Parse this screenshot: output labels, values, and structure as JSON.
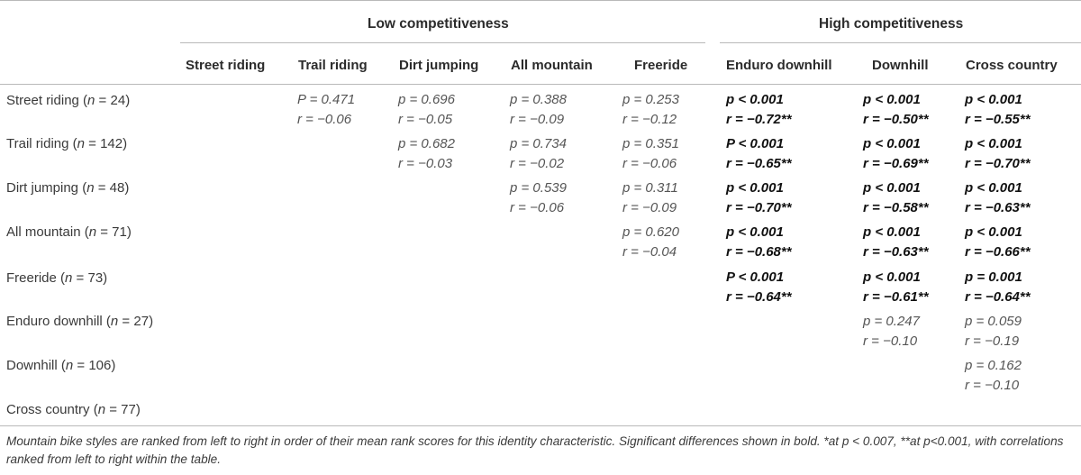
{
  "table": {
    "groups": [
      "Low competitiveness",
      "High competitiveness"
    ],
    "columns": [
      "Street riding",
      "Trail riding",
      "Dirt jumping",
      "All mountain",
      "Freeride",
      "Enduro downhill",
      "Downhill",
      "Cross country"
    ],
    "rows": [
      {
        "label": "Street riding",
        "n_symbol": "n",
        "n": "24",
        "cells": [
          {
            "column": "Trail riding",
            "p": "P = 0.471",
            "r": "r = −0.06",
            "significant": false
          },
          {
            "column": "Dirt jumping",
            "p": "p = 0.696",
            "r": "r = −0.05",
            "significant": false
          },
          {
            "column": "All mountain",
            "p": "p = 0.388",
            "r": "r = −0.09",
            "significant": false
          },
          {
            "column": "Freeride",
            "p": "p = 0.253",
            "r": "r = −0.12",
            "significant": false
          },
          {
            "column": "Enduro downhill",
            "p": "p < 0.001",
            "r": "r = −0.72**",
            "significant": true
          },
          {
            "column": "Downhill",
            "p": "p < 0.001",
            "r": "r = −0.50**",
            "significant": true
          },
          {
            "column": "Cross country",
            "p": "p < 0.001",
            "r": "r = −0.55**",
            "significant": true
          }
        ]
      },
      {
        "label": "Trail riding",
        "n_symbol": "n",
        "n": "142",
        "cells": [
          {
            "column": "Dirt jumping",
            "p": "p = 0.682",
            "r": "r = −0.03",
            "significant": false
          },
          {
            "column": "All mountain",
            "p": "p = 0.734",
            "r": "r = −0.02",
            "significant": false
          },
          {
            "column": "Freeride",
            "p": "p = 0.351",
            "r": "r = −0.06",
            "significant": false
          },
          {
            "column": "Enduro downhill",
            "p": "P < 0.001",
            "r": "r = −0.65**",
            "significant": true
          },
          {
            "column": "Downhill",
            "p": "p < 0.001",
            "r": "r = −0.69**",
            "significant": true
          },
          {
            "column": "Cross country",
            "p": "p < 0.001",
            "r": "r = −0.70**",
            "significant": true
          }
        ]
      },
      {
        "label": "Dirt jumping",
        "n_symbol": "n",
        "n": "48",
        "cells": [
          {
            "column": "All mountain",
            "p": "p = 0.539",
            "r": "r = −0.06",
            "significant": false
          },
          {
            "column": "Freeride",
            "p": "p = 0.311",
            "r": "r = −0.09",
            "significant": false
          },
          {
            "column": "Enduro downhill",
            "p": "p < 0.001",
            "r": "r = −0.70**",
            "significant": true
          },
          {
            "column": "Downhill",
            "p": "p < 0.001",
            "r": "r = −0.58**",
            "significant": true
          },
          {
            "column": "Cross country",
            "p": "p < 0.001",
            "r": "r = −0.63**",
            "significant": true
          }
        ]
      },
      {
        "label": "All mountain",
        "n_symbol": "n",
        "n": "71",
        "cells": [
          {
            "column": "Freeride",
            "p": "p = 0.620",
            "r": "r = −0.04",
            "significant": false
          },
          {
            "column": "Enduro downhill",
            "p": "p < 0.001",
            "r": "r = −0.68**",
            "significant": true
          },
          {
            "column": "Downhill",
            "p": "p < 0.001",
            "r": "r = −0.63**",
            "significant": true
          },
          {
            "column": "Cross country",
            "p": "p < 0.001",
            "r": "r = −0.66**",
            "significant": true
          }
        ]
      },
      {
        "label": "Freeride",
        "n_symbol": "n",
        "n": "73",
        "cells": [
          {
            "column": "Enduro downhill",
            "p": "P < 0.001",
            "r": "r = −0.64**",
            "significant": true
          },
          {
            "column": "Downhill",
            "p": "p < 0.001",
            "r": "r = −0.61**",
            "significant": true
          },
          {
            "column": "Cross country",
            "p": "p = 0.001",
            "r": "r = −0.64**",
            "significant": true
          }
        ]
      },
      {
        "label": "Enduro downhill",
        "n_symbol": "n",
        "n": "27",
        "cells": [
          {
            "column": "Downhill",
            "p": "p = 0.247",
            "r": "r = −0.10",
            "significant": false
          },
          {
            "column": "Cross country",
            "p": "p = 0.059",
            "r": "r = −0.19",
            "significant": false
          }
        ]
      },
      {
        "label": "Downhill",
        "n_symbol": "n",
        "n": "106",
        "cells": [
          {
            "column": "Cross country",
            "p": "p = 0.162",
            "r": "r = −0.10",
            "significant": false
          }
        ]
      },
      {
        "label": "Cross country",
        "n_symbol": "n",
        "n": "77",
        "cells": []
      }
    ]
  },
  "footnote": "Mountain bike styles are ranked from left to right in order of their mean rank scores for this identity characteristic. Significant differences shown in bold. *at p < 0.007, **at p<0.001, with correlations ranked from left to right within the table."
}
